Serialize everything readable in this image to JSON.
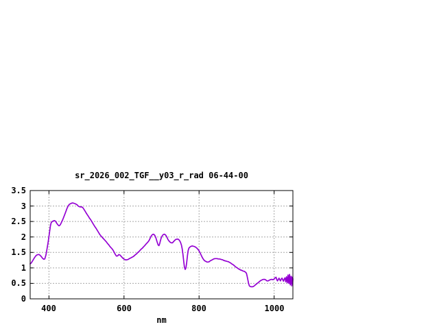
{
  "chart_data": {
    "type": "line",
    "title": "sr_2026_002_TGF__y03_r_rad 06-44-00",
    "xlabel": "nm",
    "ylabel": "",
    "xlim": [
      350,
      1050
    ],
    "ylim": [
      0,
      3.5
    ],
    "grid": true,
    "legend": false,
    "x_ticks": {
      "values": [
        400,
        600,
        800,
        1000
      ],
      "labels": [
        "400",
        "600",
        "800",
        "1000"
      ]
    },
    "y_ticks": {
      "values": [
        0,
        0.5,
        1,
        1.5,
        2,
        2.5,
        3,
        3.5
      ],
      "labels": [
        "0",
        "0.5",
        "1",
        "1.5",
        "2",
        "2.5",
        "3",
        "3.5"
      ]
    },
    "colors": {
      "line": "#9400d3",
      "grid": "#a6a6a6",
      "frame": "#000000",
      "text": "#000000",
      "background": "#ffffff"
    },
    "series": [
      {
        "color": "#9400d3",
        "points": [
          [
            350,
            1.13
          ],
          [
            353,
            1.16
          ],
          [
            356,
            1.22
          ],
          [
            359,
            1.28
          ],
          [
            362,
            1.34
          ],
          [
            365,
            1.39
          ],
          [
            368,
            1.42
          ],
          [
            371,
            1.43
          ],
          [
            374,
            1.43
          ],
          [
            377,
            1.4
          ],
          [
            380,
            1.36
          ],
          [
            383,
            1.31
          ],
          [
            386,
            1.28
          ],
          [
            389,
            1.29
          ],
          [
            392,
            1.42
          ],
          [
            395,
            1.62
          ],
          [
            398,
            1.85
          ],
          [
            400,
            2.02
          ],
          [
            402,
            2.2
          ],
          [
            404,
            2.36
          ],
          [
            406,
            2.46
          ],
          [
            409,
            2.5
          ],
          [
            412,
            2.52
          ],
          [
            415,
            2.53
          ],
          [
            418,
            2.5
          ],
          [
            421,
            2.44
          ],
          [
            424,
            2.39
          ],
          [
            427,
            2.36
          ],
          [
            430,
            2.39
          ],
          [
            433,
            2.46
          ],
          [
            436,
            2.54
          ],
          [
            439,
            2.63
          ],
          [
            442,
            2.72
          ],
          [
            445,
            2.82
          ],
          [
            448,
            2.92
          ],
          [
            451,
            3.0
          ],
          [
            454,
            3.05
          ],
          [
            457,
            3.07
          ],
          [
            460,
            3.09
          ],
          [
            463,
            3.1
          ],
          [
            466,
            3.09
          ],
          [
            469,
            3.08
          ],
          [
            472,
            3.06
          ],
          [
            475,
            3.04
          ],
          [
            478,
            3.0
          ],
          [
            481,
            2.98
          ],
          [
            484,
            2.97
          ],
          [
            487,
            2.97
          ],
          [
            490,
            2.95
          ],
          [
            493,
            2.9
          ],
          [
            496,
            2.84
          ],
          [
            499,
            2.78
          ],
          [
            502,
            2.72
          ],
          [
            505,
            2.67
          ],
          [
            508,
            2.61
          ],
          [
            511,
            2.56
          ],
          [
            514,
            2.5
          ],
          [
            517,
            2.44
          ],
          [
            520,
            2.38
          ],
          [
            523,
            2.32
          ],
          [
            526,
            2.27
          ],
          [
            529,
            2.21
          ],
          [
            532,
            2.15
          ],
          [
            535,
            2.09
          ],
          [
            538,
            2.04
          ],
          [
            541,
            2.0
          ],
          [
            544,
            1.96
          ],
          [
            547,
            1.92
          ],
          [
            550,
            1.88
          ],
          [
            553,
            1.84
          ],
          [
            556,
            1.79
          ],
          [
            559,
            1.75
          ],
          [
            562,
            1.7
          ],
          [
            565,
            1.66
          ],
          [
            568,
            1.62
          ],
          [
            571,
            1.57
          ],
          [
            574,
            1.5
          ],
          [
            577,
            1.43
          ],
          [
            580,
            1.38
          ],
          [
            583,
            1.39
          ],
          [
            586,
            1.43
          ],
          [
            589,
            1.42
          ],
          [
            592,
            1.38
          ],
          [
            595,
            1.34
          ],
          [
            598,
            1.3
          ],
          [
            601,
            1.28
          ],
          [
            604,
            1.26
          ],
          [
            607,
            1.26
          ],
          [
            610,
            1.27
          ],
          [
            613,
            1.29
          ],
          [
            616,
            1.31
          ],
          [
            619,
            1.33
          ],
          [
            622,
            1.35
          ],
          [
            625,
            1.37
          ],
          [
            628,
            1.4
          ],
          [
            631,
            1.43
          ],
          [
            634,
            1.46
          ],
          [
            637,
            1.5
          ],
          [
            640,
            1.53
          ],
          [
            643,
            1.57
          ],
          [
            646,
            1.61
          ],
          [
            649,
            1.64
          ],
          [
            652,
            1.68
          ],
          [
            655,
            1.72
          ],
          [
            658,
            1.76
          ],
          [
            661,
            1.8
          ],
          [
            664,
            1.84
          ],
          [
            667,
            1.89
          ],
          [
            670,
            1.97
          ],
          [
            673,
            2.04
          ],
          [
            676,
            2.08
          ],
          [
            679,
            2.09
          ],
          [
            682,
            2.05
          ],
          [
            685,
            1.97
          ],
          [
            688,
            1.85
          ],
          [
            691,
            1.74
          ],
          [
            693,
            1.72
          ],
          [
            695,
            1.78
          ],
          [
            697,
            1.88
          ],
          [
            699,
            1.97
          ],
          [
            702,
            2.04
          ],
          [
            705,
            2.08
          ],
          [
            708,
            2.09
          ],
          [
            711,
            2.06
          ],
          [
            714,
            2.0
          ],
          [
            717,
            1.92
          ],
          [
            720,
            1.87
          ],
          [
            723,
            1.83
          ],
          [
            726,
            1.81
          ],
          [
            729,
            1.81
          ],
          [
            732,
            1.85
          ],
          [
            735,
            1.89
          ],
          [
            738,
            1.92
          ],
          [
            741,
            1.93
          ],
          [
            744,
            1.93
          ],
          [
            747,
            1.9
          ],
          [
            750,
            1.84
          ],
          [
            753,
            1.74
          ],
          [
            755,
            1.62
          ],
          [
            757,
            1.44
          ],
          [
            759,
            1.22
          ],
          [
            761,
            1.02
          ],
          [
            763,
            0.95
          ],
          [
            765,
            1.0
          ],
          [
            767,
            1.18
          ],
          [
            769,
            1.4
          ],
          [
            771,
            1.56
          ],
          [
            773,
            1.64
          ],
          [
            776,
            1.68
          ],
          [
            779,
            1.7
          ],
          [
            782,
            1.71
          ],
          [
            785,
            1.7
          ],
          [
            788,
            1.69
          ],
          [
            791,
            1.67
          ],
          [
            794,
            1.64
          ],
          [
            797,
            1.6
          ],
          [
            800,
            1.55
          ],
          [
            803,
            1.48
          ],
          [
            806,
            1.4
          ],
          [
            809,
            1.33
          ],
          [
            812,
            1.27
          ],
          [
            815,
            1.23
          ],
          [
            818,
            1.21
          ],
          [
            821,
            1.19
          ],
          [
            824,
            1.19
          ],
          [
            827,
            1.2
          ],
          [
            830,
            1.23
          ],
          [
            833,
            1.25
          ],
          [
            836,
            1.27
          ],
          [
            839,
            1.29
          ],
          [
            842,
            1.3
          ],
          [
            845,
            1.3
          ],
          [
            848,
            1.3
          ],
          [
            851,
            1.29
          ],
          [
            854,
            1.29
          ],
          [
            857,
            1.28
          ],
          [
            860,
            1.27
          ],
          [
            863,
            1.26
          ],
          [
            866,
            1.24
          ],
          [
            869,
            1.23
          ],
          [
            872,
            1.22
          ],
          [
            875,
            1.21
          ],
          [
            878,
            1.2
          ],
          [
            881,
            1.18
          ],
          [
            884,
            1.16
          ],
          [
            887,
            1.13
          ],
          [
            890,
            1.11
          ],
          [
            893,
            1.08
          ],
          [
            896,
            1.05
          ],
          [
            899,
            1.02
          ],
          [
            902,
            1.0
          ],
          [
            905,
            0.97
          ],
          [
            908,
            0.95
          ],
          [
            911,
            0.93
          ],
          [
            914,
            0.92
          ],
          [
            917,
            0.9
          ],
          [
            920,
            0.89
          ],
          [
            923,
            0.87
          ],
          [
            926,
            0.83
          ],
          [
            928,
            0.74
          ],
          [
            930,
            0.62
          ],
          [
            932,
            0.5
          ],
          [
            934,
            0.42
          ],
          [
            936,
            0.4
          ],
          [
            939,
            0.39
          ],
          [
            942,
            0.39
          ],
          [
            945,
            0.4
          ],
          [
            948,
            0.43
          ],
          [
            951,
            0.46
          ],
          [
            954,
            0.49
          ],
          [
            957,
            0.52
          ],
          [
            960,
            0.55
          ],
          [
            963,
            0.58
          ],
          [
            966,
            0.6
          ],
          [
            969,
            0.62
          ],
          [
            972,
            0.63
          ],
          [
            975,
            0.63
          ],
          [
            978,
            0.61
          ],
          [
            981,
            0.58
          ],
          [
            984,
            0.58
          ],
          [
            987,
            0.6
          ],
          [
            990,
            0.62
          ],
          [
            993,
            0.63
          ],
          [
            996,
            0.62
          ],
          [
            999,
            0.63
          ],
          [
            1002,
            0.67
          ],
          [
            1005,
            0.7
          ],
          [
            1007,
            0.62
          ],
          [
            1009,
            0.58
          ],
          [
            1011,
            0.63
          ],
          [
            1013,
            0.67
          ],
          [
            1015,
            0.62
          ],
          [
            1017,
            0.58
          ],
          [
            1019,
            0.64
          ],
          [
            1021,
            0.67
          ],
          [
            1023,
            0.62
          ],
          [
            1025,
            0.57
          ],
          [
            1027,
            0.64
          ],
          [
            1029,
            0.68
          ],
          [
            1031,
            0.55
          ],
          [
            1033,
            0.71
          ],
          [
            1035,
            0.52
          ],
          [
            1037,
            0.77
          ],
          [
            1039,
            0.5
          ],
          [
            1041,
            0.79
          ],
          [
            1043,
            0.45
          ],
          [
            1045,
            0.73
          ],
          [
            1047,
            0.42
          ],
          [
            1048,
            0.7
          ],
          [
            1049,
            0.48
          ],
          [
            1050,
            0.65
          ]
        ]
      }
    ]
  }
}
